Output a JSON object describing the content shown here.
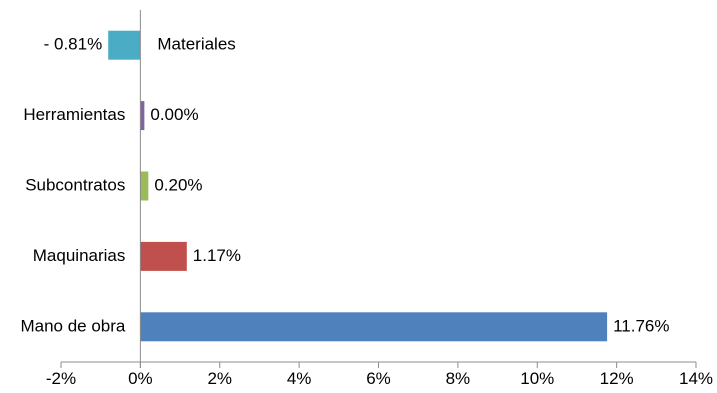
{
  "chart_data": {
    "type": "bar",
    "orientation": "horizontal",
    "categories": [
      "Materiales",
      "Herramientas",
      "Subcontratos",
      "Maquinarias",
      "Mano de obra"
    ],
    "values": [
      -0.81,
      0.0,
      0.2,
      1.17,
      11.76
    ],
    "value_labels": [
      "- 0.81%",
      "0.00%",
      "0.20%",
      "1.17%",
      "11.76%"
    ],
    "colors": [
      "#4bacc6",
      "#8064a2",
      "#9bbb59",
      "#c0504d",
      "#4f81bd"
    ],
    "xlim": [
      -2,
      14
    ],
    "xticks": [
      -2,
      0,
      2,
      4,
      6,
      8,
      10,
      12,
      14
    ],
    "xtick_labels": [
      "-2%",
      "0%",
      "2%",
      "4%",
      "6%",
      "8%",
      "10%",
      "12%",
      "14%"
    ],
    "title": "",
    "xlabel": "",
    "ylabel": "",
    "grid": false,
    "legend": "none"
  }
}
